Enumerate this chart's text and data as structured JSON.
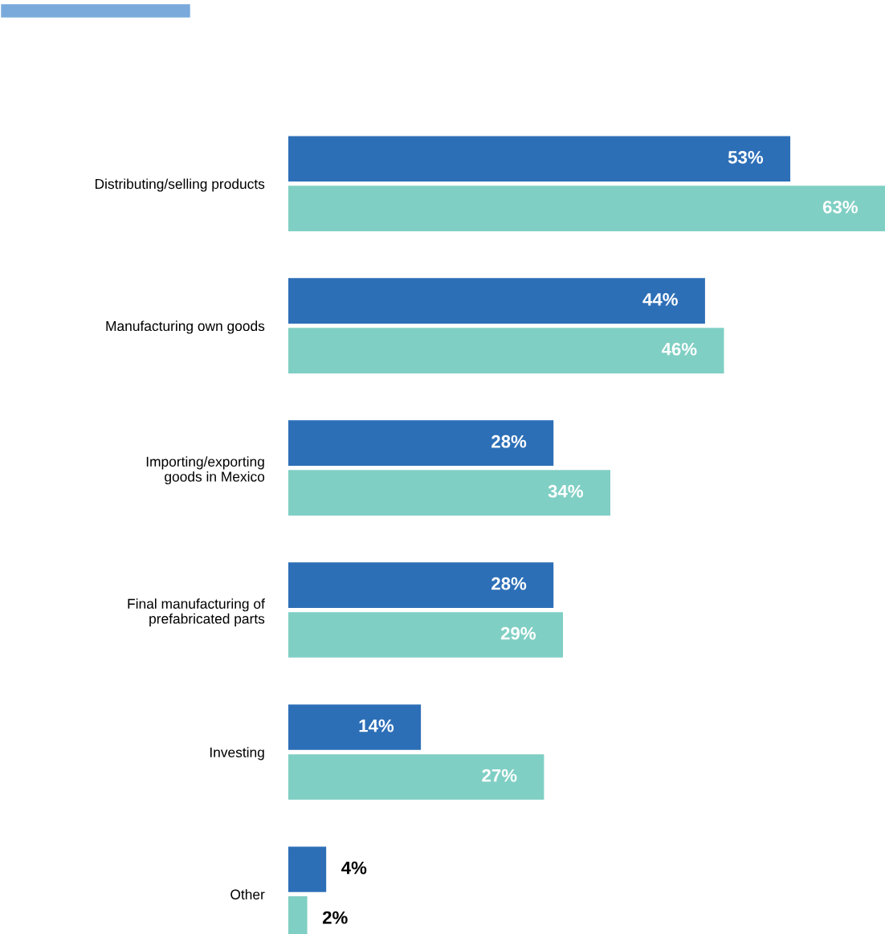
{
  "chart_data": {
    "type": "bar",
    "orientation": "horizontal",
    "categories": [
      "Distributing/selling products",
      "Manufacturing own goods",
      "Importing/exporting\ngoods in Mexico",
      "Final manufacturing of\nprefabricated parts",
      "Investing",
      "Other"
    ],
    "series": [
      {
        "color": "#2d6fb7",
        "values": [
          53,
          44,
          28,
          28,
          14,
          4
        ],
        "value_labels": [
          "53%",
          "44%",
          "28%",
          "28%",
          "14%",
          "4%"
        ]
      },
      {
        "color": "#80cfc4",
        "values": [
          63,
          46,
          34,
          29,
          27,
          2
        ],
        "value_labels": [
          "63%",
          "46%",
          "34%",
          "29%",
          "27%",
          "2%"
        ]
      }
    ],
    "grid": false,
    "legend": false,
    "tick_labels": "y"
  }
}
